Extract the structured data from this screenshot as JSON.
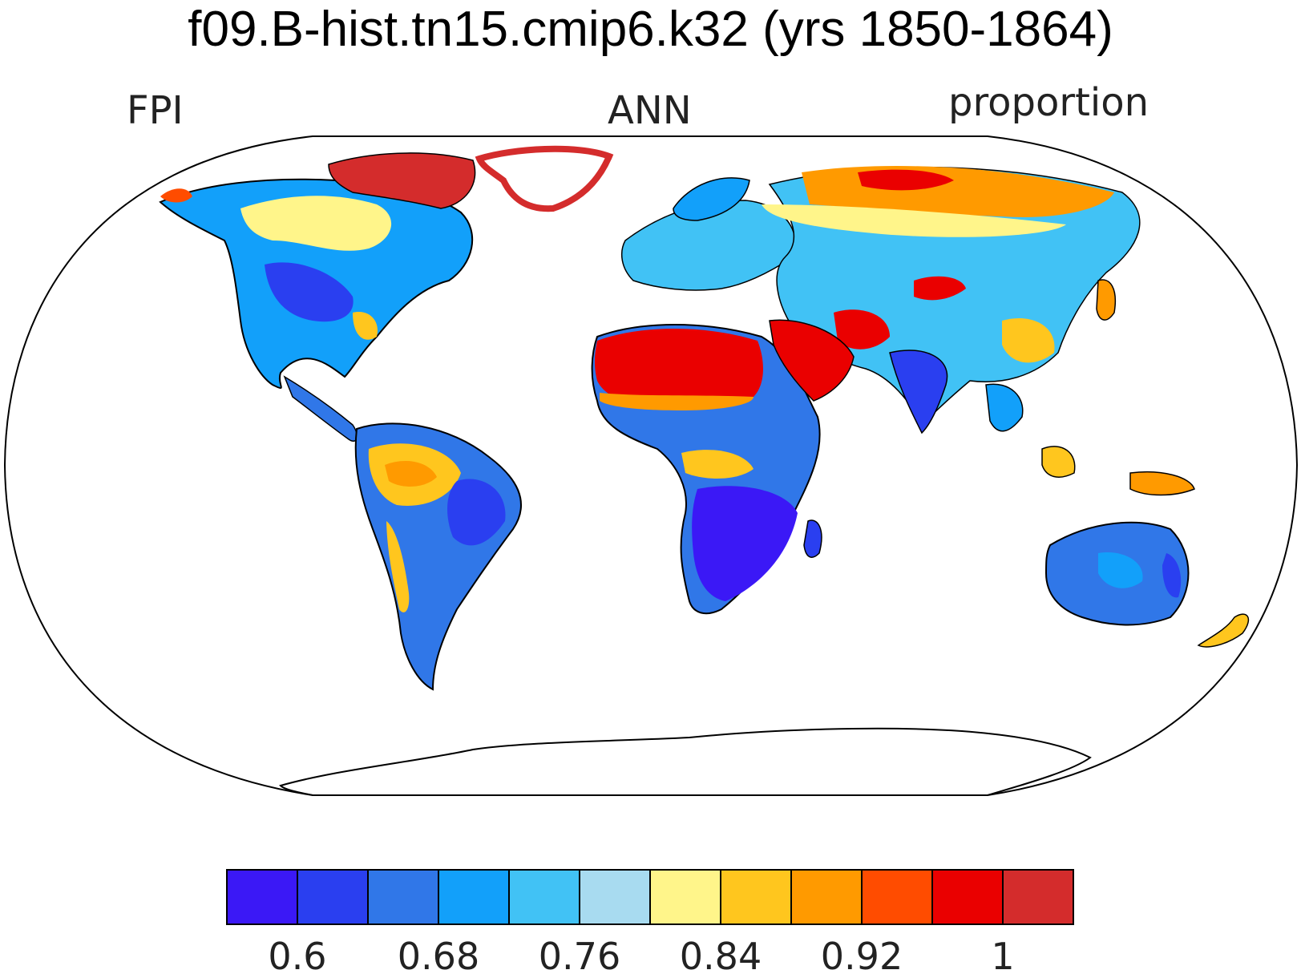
{
  "title": "f09.B-hist.tn15.cmip6.k32 (yrs 1850-1864)",
  "subtitle_left": "FPI",
  "subtitle_center": "ANN",
  "subtitle_right": "proportion",
  "colorbar": {
    "colors": [
      "#3b18f6",
      "#2a3ff0",
      "#3077e8",
      "#12a0fa",
      "#41c2f5",
      "#a8dbf0",
      "#fff58a",
      "#ffc61e",
      "#ff9a00",
      "#ff4c00",
      "#ea0000",
      "#d42c2c"
    ],
    "labels": [
      "0.6",
      "0.68",
      "0.76",
      "0.84",
      "0.92",
      "1"
    ],
    "label_after_box": [
      0,
      2,
      4,
      6,
      8,
      10
    ]
  },
  "regions": [
    {
      "name": "sahara",
      "value": 1.0,
      "color": "#ea0000"
    },
    {
      "name": "arabia",
      "value": 1.0,
      "color": "#ea0000"
    },
    {
      "name": "sahel",
      "value": 0.66,
      "color": "#3077e8"
    },
    {
      "name": "southern-africa",
      "value": 0.58,
      "color": "#3b18f6"
    },
    {
      "name": "amazon",
      "value": 0.86,
      "color": "#ffc61e"
    },
    {
      "name": "eastern-brazil",
      "value": 0.62,
      "color": "#2a3ff0"
    },
    {
      "name": "australia",
      "value": 0.7,
      "color": "#3077e8"
    },
    {
      "name": "north-america",
      "value": 0.72,
      "color": "#12a0fa"
    },
    {
      "name": "siberia",
      "value": 0.92,
      "color": "#ff9a00"
    },
    {
      "name": "greenland-margin",
      "value": 1.02,
      "color": "#d42c2c"
    }
  ]
}
